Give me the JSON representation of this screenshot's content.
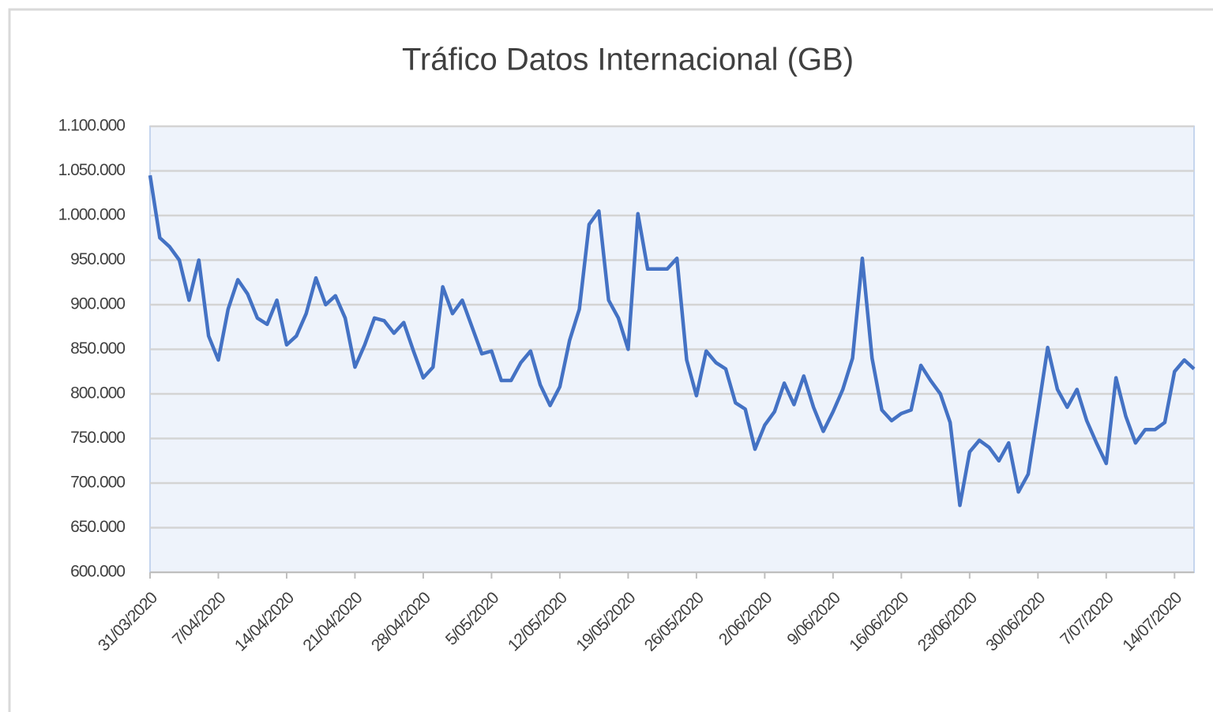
{
  "chart_data": {
    "type": "line",
    "title": "Tráfico Datos  Internacional (GB)",
    "x": [
      "31/03/2020",
      "1/04/2020",
      "2/04/2020",
      "3/04/2020",
      "4/04/2020",
      "5/04/2020",
      "6/04/2020",
      "7/04/2020",
      "8/04/2020",
      "9/04/2020",
      "10/04/2020",
      "11/04/2020",
      "12/04/2020",
      "13/04/2020",
      "14/04/2020",
      "15/04/2020",
      "16/04/2020",
      "17/04/2020",
      "18/04/2020",
      "19/04/2020",
      "20/04/2020",
      "21/04/2020",
      "22/04/2020",
      "23/04/2020",
      "24/04/2020",
      "25/04/2020",
      "26/04/2020",
      "27/04/2020",
      "28/04/2020",
      "29/04/2020",
      "30/04/2020",
      "1/05/2020",
      "2/05/2020",
      "3/05/2020",
      "4/05/2020",
      "5/05/2020",
      "6/05/2020",
      "7/05/2020",
      "8/05/2020",
      "9/05/2020",
      "10/05/2020",
      "11/05/2020",
      "12/05/2020",
      "13/05/2020",
      "14/05/2020",
      "15/05/2020",
      "16/05/2020",
      "17/05/2020",
      "18/05/2020",
      "19/05/2020",
      "20/05/2020",
      "21/05/2020",
      "22/05/2020",
      "23/05/2020",
      "24/05/2020",
      "25/05/2020",
      "26/05/2020",
      "27/05/2020",
      "28/05/2020",
      "29/05/2020",
      "30/05/2020",
      "31/05/2020",
      "1/06/2020",
      "2/06/2020",
      "3/06/2020",
      "4/06/2020",
      "5/06/2020",
      "6/06/2020",
      "7/06/2020",
      "8/06/2020",
      "9/06/2020",
      "10/06/2020",
      "11/06/2020",
      "12/06/2020",
      "13/06/2020",
      "14/06/2020",
      "15/06/2020",
      "16/06/2020",
      "17/06/2020",
      "18/06/2020",
      "19/06/2020",
      "20/06/2020",
      "21/06/2020",
      "22/06/2020",
      "23/06/2020",
      "24/06/2020",
      "25/06/2020",
      "26/06/2020",
      "27/06/2020",
      "28/06/2020",
      "29/06/2020",
      "30/06/2020",
      "1/07/2020",
      "2/07/2020",
      "3/07/2020",
      "4/07/2020",
      "5/07/2020",
      "6/07/2020",
      "7/07/2020",
      "8/07/2020",
      "9/07/2020",
      "10/07/2020",
      "11/07/2020",
      "12/07/2020",
      "13/07/2020",
      "14/07/2020",
      "15/07/2020",
      "16/07/2020"
    ],
    "xticks_every": 7,
    "series": [
      {
        "name": "Tráfico",
        "color": "#4472c4",
        "values": [
          1045000,
          975000,
          965000,
          950000,
          905000,
          950000,
          865000,
          838000,
          895000,
          928000,
          912000,
          885000,
          878000,
          905000,
          855000,
          865000,
          890000,
          930000,
          900000,
          910000,
          885000,
          830000,
          855000,
          885000,
          882000,
          868000,
          880000,
          848000,
          818000,
          830000,
          920000,
          890000,
          905000,
          875000,
          845000,
          848000,
          815000,
          815000,
          835000,
          848000,
          810000,
          787000,
          808000,
          860000,
          895000,
          990000,
          1005000,
          905000,
          885000,
          850000,
          1002000,
          940000,
          940000,
          940000,
          952000,
          838000,
          798000,
          848000,
          835000,
          828000,
          790000,
          783000,
          738000,
          765000,
          780000,
          812000,
          788000,
          820000,
          785000,
          758000,
          780000,
          805000,
          840000,
          952000,
          840000,
          782000,
          770000,
          778000,
          782000,
          832000,
          815000,
          800000,
          768000,
          675000,
          735000,
          748000,
          740000,
          725000,
          745000,
          690000,
          710000,
          780000,
          852000,
          805000,
          785000,
          805000,
          770000,
          745000,
          722000,
          818000,
          775000,
          745000,
          760000,
          760000,
          768000,
          825000,
          838000,
          828000
        ]
      }
    ],
    "ylim": [
      600000,
      1100000
    ],
    "yticks": [
      {
        "value": 600000,
        "label": "600.000"
      },
      {
        "value": 650000,
        "label": "650.000"
      },
      {
        "value": 700000,
        "label": "700.000"
      },
      {
        "value": 750000,
        "label": "750.000"
      },
      {
        "value": 800000,
        "label": "800.000"
      },
      {
        "value": 850000,
        "label": "850.000"
      },
      {
        "value": 900000,
        "label": "900.000"
      },
      {
        "value": 950000,
        "label": "950.000"
      },
      {
        "value": 1000000,
        "label": "1.000.000"
      },
      {
        "value": 1050000,
        "label": "1.050.000"
      },
      {
        "value": 1100000,
        "label": "1.100.000"
      }
    ],
    "grid": true
  }
}
